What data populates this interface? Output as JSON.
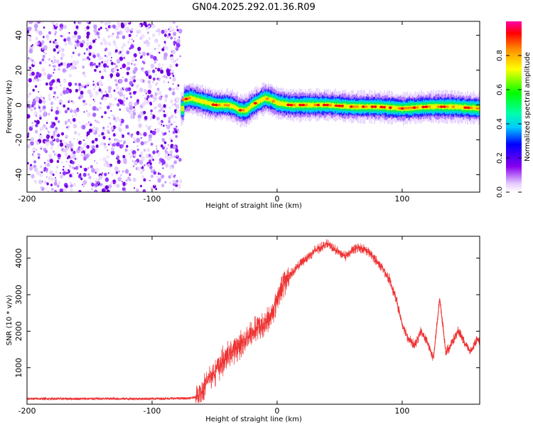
{
  "title": "GN04.2025.292.01.36.R09",
  "chart_data": [
    {
      "type": "heatmap",
      "xlabel": "Height of straight line (km)",
      "ylabel": "Frequency (Hz)",
      "xlim": [
        -200,
        162
      ],
      "ylim": [
        -50,
        48
      ],
      "xticks": [
        -200,
        -100,
        0,
        100
      ],
      "xtick_labels": [
        "-200",
        "-100",
        "0",
        "100"
      ],
      "yticks": [
        -40,
        -20,
        0,
        20,
        40
      ],
      "ytick_labels": [
        "-40",
        "-20",
        "0",
        "20",
        "40"
      ],
      "noise_region_x": [
        -200,
        -77
      ],
      "signal_region_x": [
        -77,
        162
      ],
      "ridge": {
        "x": [
          -75,
          -70,
          -65,
          -60,
          -55,
          -50,
          -45,
          -40,
          -35,
          -30,
          -25,
          -20,
          -15,
          -10,
          -5,
          0,
          10,
          20,
          40,
          60,
          80,
          100,
          120,
          140,
          162
        ],
        "freq": [
          3,
          4,
          3,
          2,
          1,
          0,
          0,
          0,
          -1,
          -3,
          -3,
          0,
          2,
          4,
          3,
          1,
          0,
          0,
          0,
          -1,
          -1,
          -2,
          -1,
          -1,
          -2
        ]
      },
      "colorbar": {
        "label": "Normalized spectral amplitude",
        "range": [
          0.0,
          1.0
        ],
        "ticks": [
          0.0,
          0.2,
          0.4,
          0.6,
          0.8
        ],
        "tick_labels": [
          "0.0",
          "0.2",
          "0.4",
          "0.6",
          "0.8"
        ]
      }
    },
    {
      "type": "line",
      "xlabel": "Height of straight line (km)",
      "ylabel": "SNR (10 * v/v)",
      "xlim": [
        -200,
        162
      ],
      "ylim": [
        0,
        4600
      ],
      "xticks": [
        -200,
        -100,
        0,
        100
      ],
      "xtick_labels": [
        "-200",
        "-100",
        "0",
        "100"
      ],
      "yticks": [
        1000,
        2000,
        3000,
        4000
      ],
      "ytick_labels": [
        "1000",
        "2000",
        "3000",
        "4000"
      ],
      "series": [
        {
          "name": "SNR",
          "color": "#ee3333",
          "x": [
            -200,
            -180,
            -160,
            -140,
            -120,
            -100,
            -80,
            -70,
            -65,
            -60,
            -55,
            -50,
            -45,
            -40,
            -35,
            -30,
            -25,
            -20,
            -15,
            -10,
            -5,
            0,
            5,
            10,
            15,
            20,
            25,
            30,
            35,
            40,
            45,
            50,
            55,
            60,
            65,
            70,
            75,
            80,
            85,
            90,
            95,
            100,
            105,
            110,
            115,
            120,
            125,
            130,
            135,
            140,
            145,
            150,
            155,
            160,
            162
          ],
          "y": [
            150,
            150,
            150,
            150,
            150,
            150,
            160,
            160,
            200,
            300,
            700,
            900,
            1100,
            1300,
            1500,
            1600,
            1800,
            1950,
            2100,
            2200,
            2400,
            2900,
            3300,
            3550,
            3700,
            3900,
            4050,
            4200,
            4300,
            4400,
            4250,
            4150,
            4050,
            4200,
            4300,
            4250,
            4100,
            3900,
            3700,
            3400,
            2900,
            2200,
            1800,
            1600,
            2000,
            1700,
            1250,
            2900,
            1400,
            1700,
            2000,
            1650,
            1450,
            1800,
            1700
          ]
        }
      ]
    }
  ]
}
